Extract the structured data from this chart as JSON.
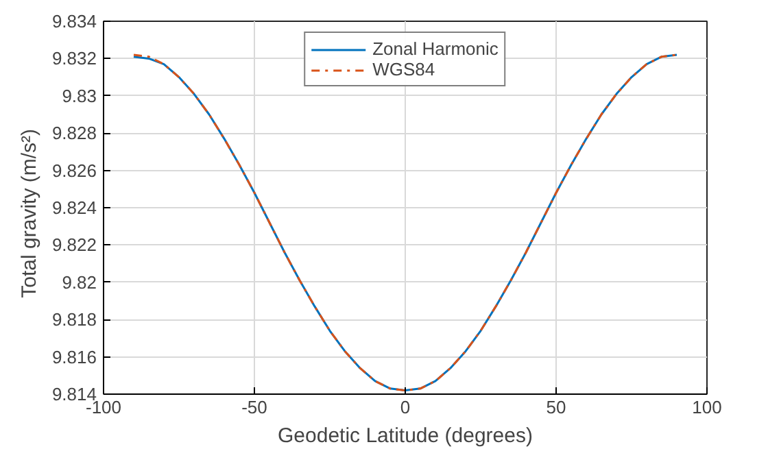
{
  "chart_data": {
    "type": "line",
    "xlabel": "Geodetic Latitude (degrees)",
    "ylabel": "Total  gravity  (m/s²)",
    "x": [
      -90,
      -85,
      -80,
      -75,
      -70,
      -65,
      -60,
      -55,
      -50,
      -45,
      -40,
      -35,
      -30,
      -25,
      -20,
      -15,
      -10,
      -5,
      0,
      5,
      10,
      15,
      20,
      25,
      30,
      35,
      40,
      45,
      50,
      55,
      60,
      65,
      70,
      75,
      80,
      85,
      90
    ],
    "series": [
      {
        "name": "Zonal Harmonic",
        "color": "#0072bd",
        "line_style": "solid",
        "values": [
          9.8321,
          9.832,
          9.8317,
          9.831,
          9.8301,
          9.829,
          9.8277,
          9.8263,
          9.8248,
          9.8232,
          9.8216,
          9.8201,
          9.8187,
          9.8174,
          9.8163,
          9.8154,
          9.8147,
          9.8143,
          9.8142,
          9.8143,
          9.8147,
          9.8154,
          9.8163,
          9.8174,
          9.8187,
          9.8201,
          9.8216,
          9.8232,
          9.8248,
          9.8263,
          9.8277,
          9.829,
          9.8301,
          9.831,
          9.8317,
          9.8321,
          9.8322
        ]
      },
      {
        "name": "WGS84",
        "color": "#d95319",
        "line_style": "dashdot",
        "values": [
          9.8322,
          9.8321,
          9.8317,
          9.831,
          9.8301,
          9.829,
          9.8277,
          9.8263,
          9.8248,
          9.8232,
          9.8216,
          9.8201,
          9.8187,
          9.8174,
          9.8163,
          9.8154,
          9.8147,
          9.8143,
          9.8142,
          9.8143,
          9.8147,
          9.8154,
          9.8163,
          9.8174,
          9.8187,
          9.8201,
          9.8216,
          9.8232,
          9.8248,
          9.8263,
          9.8277,
          9.829,
          9.8301,
          9.831,
          9.8317,
          9.8321,
          9.8322
        ]
      }
    ],
    "xlim": [
      -100,
      100
    ],
    "xticks": [
      -100,
      -50,
      0,
      50,
      100
    ],
    "ylim": [
      9.814,
      9.834
    ],
    "yticks": [
      9.814,
      9.816,
      9.818,
      9.82,
      9.822,
      9.824,
      9.826,
      9.828,
      9.83,
      9.832,
      9.834
    ],
    "grid": true,
    "legend": "top"
  }
}
